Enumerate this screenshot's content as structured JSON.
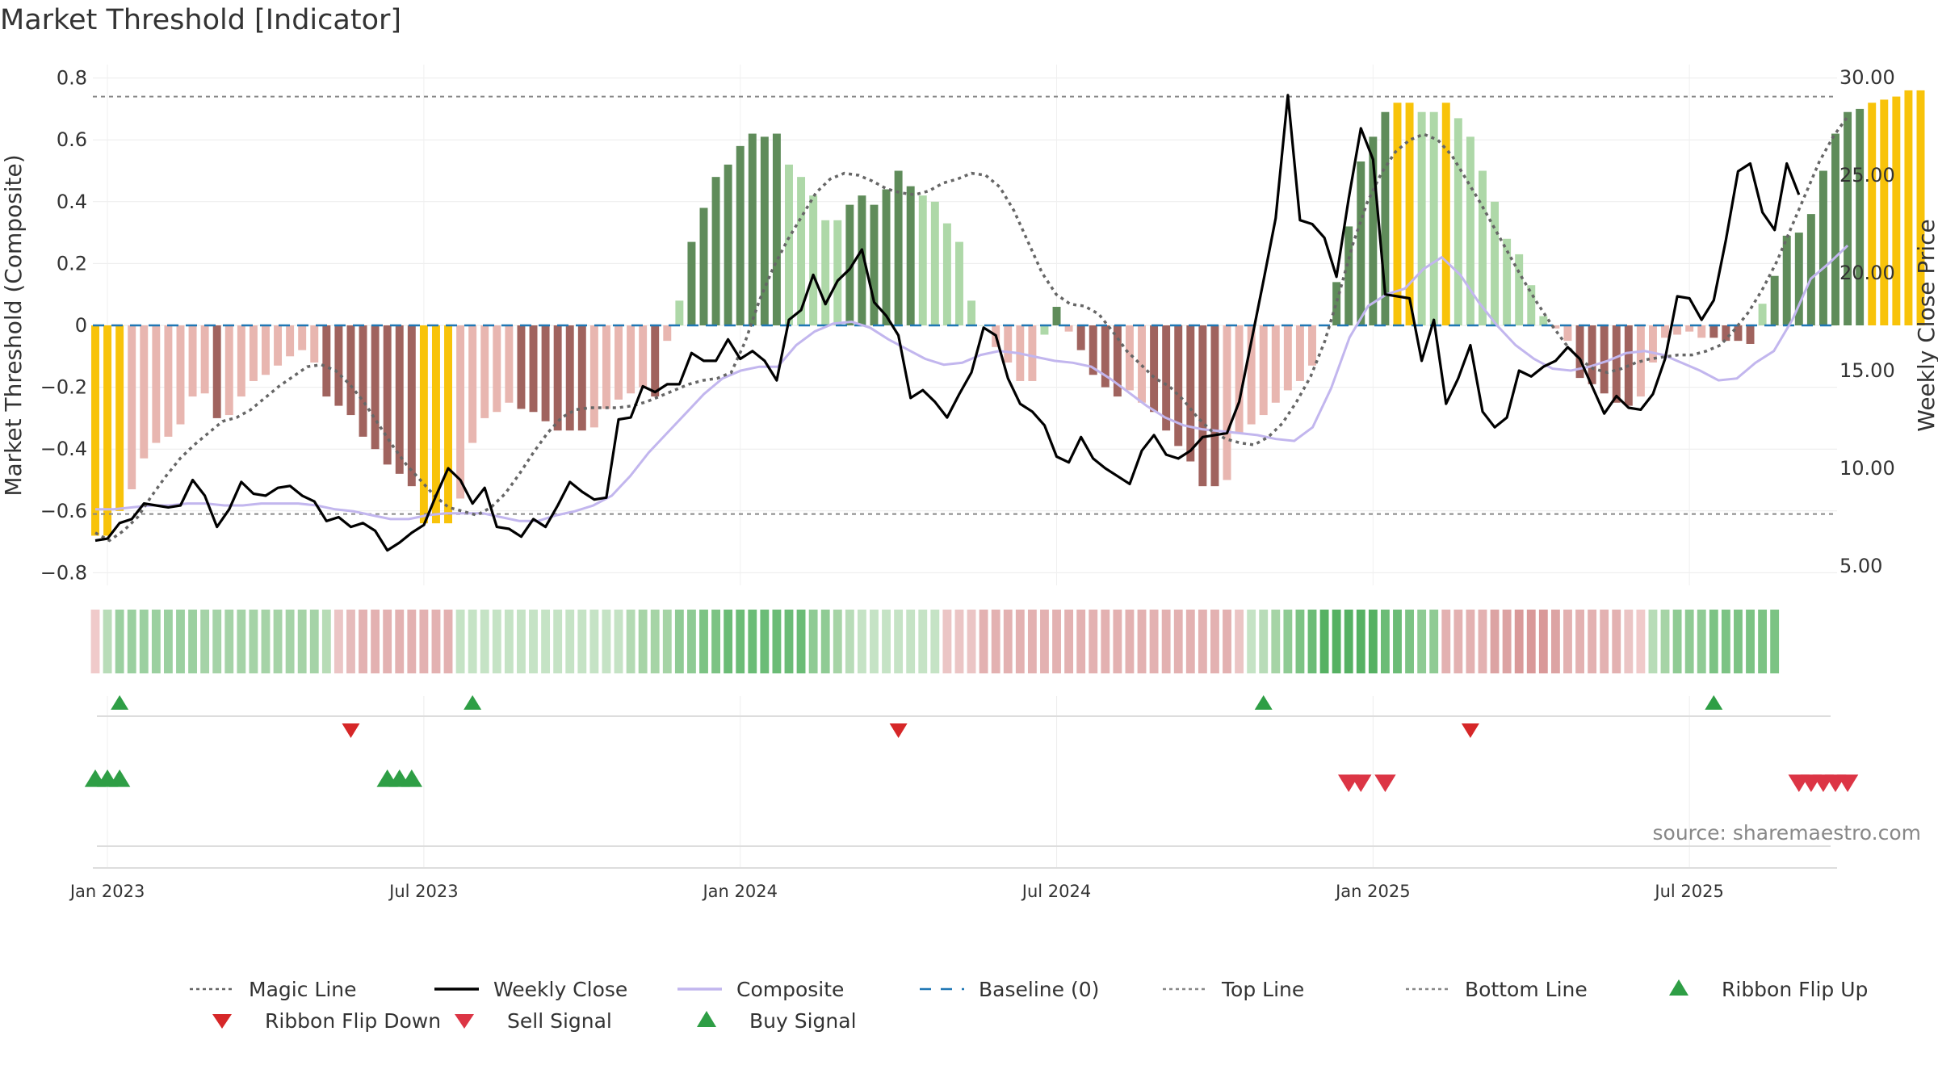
{
  "chart_data": {
    "type": "bar",
    "title": "Market Threshold [Indicator]",
    "ylabel": "Market Threshold (Composite)",
    "ylabel_right": "Weekly Close Price",
    "source": "source: sharemaestro.com",
    "ylim": [
      -0.84,
      0.84
    ],
    "ylim_right": [
      3.0,
      31.0
    ],
    "yticks": [
      "0.8",
      "0.6",
      "0.4",
      "0.2",
      "0",
      "−0.2",
      "−0.4",
      "−0.6",
      "−0.8"
    ],
    "yticks_right": [
      "30.00",
      "25.00",
      "20.00",
      "15.00",
      "10.00",
      "5.00"
    ],
    "x_ticks": [
      {
        "label": "Jan 2023",
        "week": 1
      },
      {
        "label": "Jul 2023",
        "week": 27
      },
      {
        "label": "Jan 2024",
        "week": 53
      },
      {
        "label": "Jul 2024",
        "week": 79
      },
      {
        "label": "Jan 2025",
        "week": 105
      },
      {
        "label": "Jul 2025",
        "week": 131
      }
    ],
    "top_line": 0.74,
    "bottom_line": -0.61,
    "grid": true,
    "legend_position": "bottom",
    "colors": {
      "yellow": "#F8C30A",
      "red_light": "#E8B6B0",
      "red_dark": "#A0635E",
      "green_light": "#AED8A8",
      "green_dark": "#5F8C5A",
      "composite": "#C2B6EE",
      "close": "#000000",
      "magic": "#666666",
      "baseline": "#1F77B4",
      "buy": "#2E9E45",
      "sell": "#DC3545",
      "flip_up": "#2E9E45",
      "flip_down": "#D62728"
    },
    "composite_bars": [
      -0.68,
      -0.68,
      -0.6,
      -0.53,
      -0.43,
      -0.38,
      -0.36,
      -0.32,
      -0.23,
      -0.22,
      -0.3,
      -0.29,
      -0.23,
      -0.18,
      -0.16,
      -0.13,
      -0.1,
      -0.08,
      -0.12,
      -0.23,
      -0.26,
      -0.29,
      -0.36,
      -0.4,
      -0.45,
      -0.48,
      -0.52,
      -0.64,
      -0.64,
      -0.64,
      -0.56,
      -0.38,
      -0.3,
      -0.28,
      -0.25,
      -0.27,
      -0.28,
      -0.31,
      -0.34,
      -0.34,
      -0.34,
      -0.33,
      -0.27,
      -0.24,
      -0.22,
      -0.2,
      -0.23,
      -0.05,
      0.08,
      0.27,
      0.38,
      0.48,
      0.52,
      0.58,
      0.62,
      0.61,
      0.62,
      0.52,
      0.48,
      0.42,
      0.34,
      0.34,
      0.39,
      0.42,
      0.39,
      0.44,
      0.5,
      0.45,
      0.42,
      0.4,
      0.33,
      0.27,
      0.08,
      0.0,
      -0.07,
      -0.12,
      -0.18,
      -0.18,
      -0.03,
      0.06,
      -0.02,
      -0.08,
      -0.16,
      -0.2,
      -0.23,
      -0.21,
      -0.25,
      -0.28,
      -0.34,
      -0.39,
      -0.44,
      -0.52,
      -0.52,
      -0.5,
      -0.35,
      -0.32,
      -0.29,
      -0.25,
      -0.21,
      -0.18,
      -0.13,
      0.0,
      0.14,
      0.32,
      0.53,
      0.61,
      0.69,
      0.72,
      0.72,
      0.69,
      0.69,
      0.72,
      0.67,
      0.61,
      0.5,
      0.4,
      0.28,
      0.23,
      0.13,
      0.03,
      -0.01,
      -0.05,
      -0.17,
      -0.19,
      -0.22,
      -0.25,
      -0.26,
      -0.23,
      -0.12,
      -0.04,
      -0.03,
      -0.02,
      -0.04,
      -0.04,
      -0.05,
      -0.05,
      -0.06,
      0.07,
      0.16,
      0.29,
      0.3,
      0.36,
      0.5,
      0.62,
      0.69,
      0.7,
      0.72,
      0.73,
      0.74,
      0.76,
      0.76
    ],
    "bar_colors": [
      "yellow",
      "yellow",
      "yellow",
      "red_light",
      "red_light",
      "red_light",
      "red_light",
      "red_light",
      "red_light",
      "red_light",
      "red_dark",
      "red_light",
      "red_light",
      "red_light",
      "red_light",
      "red_light",
      "red_light",
      "red_light",
      "red_light",
      "red_dark",
      "red_dark",
      "red_dark",
      "red_dark",
      "red_dark",
      "red_dark",
      "red_dark",
      "red_dark",
      "yellow",
      "yellow",
      "yellow",
      "red_light",
      "red_light",
      "red_light",
      "red_light",
      "red_light",
      "red_dark",
      "red_dark",
      "red_dark",
      "red_dark",
      "red_dark",
      "red_dark",
      "red_light",
      "red_light",
      "red_light",
      "red_light",
      "red_light",
      "red_dark",
      "red_light",
      "green_light",
      "green_dark",
      "green_dark",
      "green_dark",
      "green_dark",
      "green_dark",
      "green_dark",
      "green_dark",
      "green_dark",
      "green_light",
      "green_light",
      "green_light",
      "green_light",
      "green_light",
      "green_dark",
      "green_dark",
      "green_dark",
      "green_dark",
      "green_dark",
      "green_dark",
      "green_light",
      "green_light",
      "green_light",
      "green_light",
      "green_light",
      "green_light",
      "red_light",
      "red_light",
      "red_light",
      "red_light",
      "green_light",
      "green_dark",
      "red_light",
      "red_dark",
      "red_dark",
      "red_dark",
      "red_dark",
      "red_light",
      "red_light",
      "red_dark",
      "red_dark",
      "red_dark",
      "red_dark",
      "red_dark",
      "red_dark",
      "red_light",
      "red_light",
      "red_light",
      "red_light",
      "red_light",
      "red_light",
      "red_light",
      "red_light",
      "red_light",
      "green_dark",
      "green_dark",
      "green_dark",
      "green_dark",
      "green_dark",
      "yellow",
      "yellow",
      "green_light",
      "green_light",
      "yellow",
      "green_light",
      "green_light",
      "green_light",
      "green_light",
      "green_light",
      "green_light",
      "green_light",
      "green_light",
      "red_light",
      "red_light",
      "red_dark",
      "red_dark",
      "red_dark",
      "red_dark",
      "red_dark",
      "red_light",
      "red_light",
      "red_light",
      "red_light",
      "red_light",
      "red_light",
      "red_dark",
      "red_dark",
      "red_dark",
      "red_dark",
      "green_light",
      "green_dark",
      "green_dark",
      "green_dark",
      "green_dark",
      "green_dark",
      "green_dark",
      "green_dark",
      "green_dark",
      "yellow",
      "yellow",
      "yellow",
      "yellow",
      "yellow"
    ],
    "weekly_close": [
      6.3,
      6.4,
      7.2,
      7.4,
      8.2,
      8.1,
      8.0,
      8.1,
      9.4,
      8.6,
      7.0,
      7.9,
      9.3,
      8.7,
      8.6,
      9.0,
      9.1,
      8.6,
      8.3,
      7.3,
      7.5,
      7.0,
      7.2,
      6.8,
      5.8,
      6.2,
      6.7,
      7.1,
      8.6,
      10.0,
      9.4,
      8.2,
      9.0,
      7.0,
      6.9,
      6.5,
      7.4,
      7.0,
      8.1,
      9.3,
      8.8,
      8.4,
      8.5,
      12.5,
      12.6,
      14.2,
      13.9,
      14.3,
      14.3,
      15.9,
      15.5,
      15.5,
      16.6,
      15.6,
      16.0,
      15.5,
      14.5,
      17.6,
      18.1,
      19.9,
      18.4,
      19.6,
      20.2,
      21.2,
      18.5,
      17.8,
      16.8,
      13.6,
      14.0,
      13.4,
      12.6,
      13.8,
      14.9,
      17.2,
      16.8,
      14.6,
      13.3,
      12.9,
      12.2,
      10.6,
      10.3,
      11.6,
      10.5,
      10.0,
      9.6,
      9.2,
      10.9,
      11.7,
      10.7,
      10.5,
      10.9,
      11.6,
      11.7,
      11.8,
      13.4,
      16.5,
      19.6,
      22.8,
      29.1,
      22.7,
      22.5,
      21.8,
      19.8,
      23.8,
      27.4,
      25.8,
      18.9,
      18.8,
      18.7,
      15.5,
      17.6,
      13.3,
      14.6,
      16.3,
      12.9,
      12.1,
      12.6,
      15.0,
      14.7,
      15.2,
      15.5,
      16.2,
      15.6,
      14.2,
      12.8,
      13.7,
      13.1,
      13.0,
      13.8,
      15.6,
      18.8,
      18.7,
      17.6,
      18.6,
      21.7,
      25.2,
      25.6,
      23.1,
      22.2,
      25.6,
      24.0
    ],
    "magic_line": [
      6.7,
      6.3,
      6.8,
      7.5,
      8.6,
      9.6,
      10.5,
      11.2,
      11.8,
      12.4,
      12.6,
      13.0,
      13.6,
      14.2,
      14.7,
      15.2,
      15.3,
      15.0,
      14.3,
      13.4,
      12.3,
      11.2,
      10.2,
      9.4,
      8.6,
      8.0,
      7.8,
      7.6,
      8.0,
      8.7,
      9.7,
      10.8,
      11.8,
      12.6,
      13.0,
      13.1,
      13.1,
      13.1,
      13.2,
      13.4,
      13.7,
      14.0,
      14.3,
      14.5,
      14.6,
      14.9,
      16.5,
      18.6,
      20.3,
      21.7,
      22.9,
      24.1,
      24.8,
      25.1,
      25.0,
      24.7,
      24.3,
      24.1,
      24.0,
      24.2,
      24.6,
      24.8,
      25.1,
      25.0,
      24.4,
      23.2,
      21.6,
      20.0,
      18.9,
      18.4,
      18.3,
      17.9,
      17.0,
      16.0,
      15.3,
      14.6,
      14.2,
      13.5,
      12.6,
      11.9,
      11.5,
      11.3,
      11.2,
      11.6,
      12.3,
      13.4,
      14.7,
      16.5,
      18.9,
      21.5,
      23.6,
      25.1,
      26.2,
      26.8,
      27.1,
      26.8,
      26.0,
      24.8,
      23.6,
      22.3,
      21.0,
      19.7,
      18.5,
      17.4,
      16.4,
      15.6,
      15.1,
      14.9,
      15.1,
      15.4,
      15.6,
      15.7,
      15.8,
      15.8,
      16.0,
      16.3,
      17.1,
      18.0,
      19.2,
      20.6,
      22.3,
      24.0,
      25.7,
      27.0,
      28.0
    ],
    "composite_line": [
      7.9,
      7.9,
      8.0,
      8.1,
      8.1,
      8.2,
      8.2,
      8.1,
      8.1,
      8.2,
      8.2,
      8.2,
      8.1,
      7.9,
      7.8,
      7.6,
      7.4,
      7.4,
      7.6,
      7.7,
      7.7,
      7.7,
      7.5,
      7.3,
      7.3,
      7.6,
      7.8,
      8.1,
      8.6,
      9.6,
      10.8,
      11.8,
      12.8,
      13.8,
      14.6,
      15.0,
      15.2,
      15.2,
      16.3,
      17.0,
      17.4,
      17.5,
      17.2,
      16.6,
      16.1,
      15.6,
      15.3,
      15.4,
      15.8,
      16.0,
      15.9,
      15.7,
      15.5,
      15.4,
      15.2,
      14.6,
      13.9,
      13.2,
      12.6,
      12.2,
      12.0,
      11.9,
      11.8,
      11.7,
      11.5,
      11.4,
      12.1,
      14.1,
      16.7,
      18.3,
      18.9,
      19.2,
      20.2,
      20.8,
      19.9,
      18.5,
      17.3,
      16.3,
      15.6,
      15.1,
      15.0,
      15.2,
      15.5,
      15.9,
      16.0,
      15.8,
      15.4,
      15.0,
      14.5,
      14.6,
      15.4,
      16.0,
      17.6,
      19.7,
      20.5,
      21.4
    ],
    "ribbon": [
      "#f0caca",
      "#b8dcb8",
      "#9bd0a0",
      "#9bd0a0",
      "#9bd0a0",
      "#9bd0a0",
      "#9bd0a0",
      "#9bd0a0",
      "#9bd0a0",
      "#a5d3a7",
      "#a5d3a7",
      "#a5d3a7",
      "#a5d3a7",
      "#a5d3a7",
      "#a5d3a7",
      "#a5d3a7",
      "#a5d3a7",
      "#a5d3a7",
      "#a5d3a7",
      "#b7dcb6",
      "#ebc5c5",
      "#e6bbbb",
      "#e3b1b1",
      "#e3b1b1",
      "#e3b1b1",
      "#e3b1b1",
      "#e3b1b1",
      "#e3b1b1",
      "#e3b1b1",
      "#e3b1b1",
      "#c5e3c5",
      "#c5e3c5",
      "#c5e3c5",
      "#c5e3c5",
      "#c5e3c5",
      "#c5e3c5",
      "#c5e3c5",
      "#c5e3c5",
      "#c5e3c5",
      "#c5e3c5",
      "#c5e3c5",
      "#c5e3c5",
      "#c5e3c5",
      "#c5e3c5",
      "#b3dab3",
      "#a6d4a6",
      "#a6d4a6",
      "#a6d4a6",
      "#8fcb94",
      "#8fcb94",
      "#7cc384",
      "#7cc384",
      "#6bbc76",
      "#6bbc76",
      "#6bbc76",
      "#6bbc76",
      "#6bbc76",
      "#6bbc76",
      "#6bbc76",
      "#8fcb94",
      "#8fcb94",
      "#a6d4a6",
      "#b8dcb8",
      "#c5e3c5",
      "#c5e3c5",
      "#c5e3c5",
      "#c5e3c5",
      "#c5e3c5",
      "#c5e3c5",
      "#c5e3c5",
      "#ebc5c5",
      "#ebc5c5",
      "#ebc5c5",
      "#e3b1b1",
      "#e3b1b1",
      "#e3b1b1",
      "#e3b1b1",
      "#e3b1b1",
      "#e3b1b1",
      "#e3b1b1",
      "#e3b1b1",
      "#e3b1b1",
      "#e3b1b1",
      "#e3b1b1",
      "#e3b1b1",
      "#e3b1b1",
      "#e3b1b1",
      "#e3b1b1",
      "#e3b1b1",
      "#e3b1b1",
      "#e3b1b1",
      "#e3b1b1",
      "#e3b1b1",
      "#e3b1b1",
      "#ebc5c5",
      "#c5e3c5",
      "#b8dcb8",
      "#a6d4a6",
      "#8fcb94",
      "#7cc384",
      "#6bbc76",
      "#56b163",
      "#56b163",
      "#56b163",
      "#56b163",
      "#56b163",
      "#6bbc76",
      "#6bbc76",
      "#7cc384",
      "#8fcb94",
      "#8fcb94",
      "#e3b1b1",
      "#e3b1b1",
      "#e3b1b1",
      "#e3b1b1",
      "#dca3a3",
      "#dca3a3",
      "#d99999",
      "#d99999",
      "#d99999",
      "#dca3a3",
      "#e3b1b1",
      "#e3b1b1",
      "#e3b1b1",
      "#e3b1b1",
      "#e3b1b1",
      "#ebc5c5",
      "#f0caca",
      "#b8dcb8",
      "#a6d4a6",
      "#8fcb94",
      "#8fcb94",
      "#8fcb94",
      "#7cc384",
      "#7cc384",
      "#7cc384",
      "#7cc384",
      "#7cc384",
      "#7cc384"
    ],
    "ribbon_flip_up_weeks": [
      2,
      31,
      96,
      133
    ],
    "ribbon_flip_down_weeks": [
      21,
      66,
      113
    ],
    "buy_signal_weeks": [
      0,
      1,
      2,
      24,
      25,
      26
    ],
    "sell_signal_weeks": [
      103,
      104,
      106,
      140,
      141,
      142,
      143,
      144
    ],
    "legend": [
      {
        "label": "Magic Line",
        "style": "dotted",
        "color": "#666666"
      },
      {
        "label": "Weekly Close",
        "style": "solid",
        "color": "#000000"
      },
      {
        "label": "Composite",
        "style": "solid",
        "color": "#C2B6EE"
      },
      {
        "label": "Baseline (0)",
        "style": "dashed",
        "color": "#1F77B4"
      },
      {
        "label": "Top Line",
        "style": "dotted",
        "color": "#888888"
      },
      {
        "label": "Bottom Line",
        "style": "dotted",
        "color": "#888888"
      },
      {
        "label": "Ribbon Flip Up",
        "style": "tri-up",
        "color": "#2E9E45"
      },
      {
        "label": "Ribbon Flip Down",
        "style": "tri-down",
        "color": "#D62728"
      },
      {
        "label": "Sell Signal",
        "style": "tri-down",
        "color": "#DC3545"
      },
      {
        "label": "Buy Signal",
        "style": "tri-up",
        "color": "#2E9E45"
      }
    ]
  }
}
